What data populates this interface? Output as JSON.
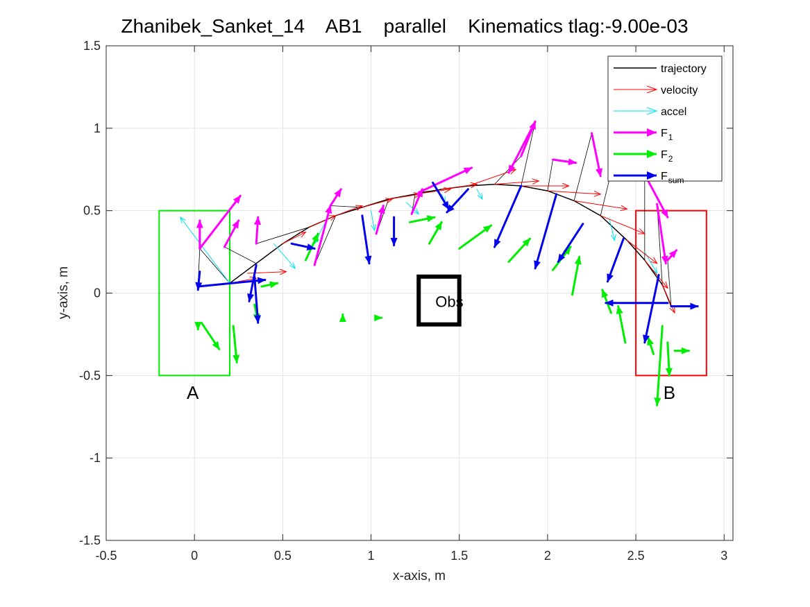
{
  "chart_data": {
    "type": "line",
    "title": "Zhanibek_Sanket_14    AB1    parallel    Kinematics tlag:-9.00e-03",
    "xlabel": "x-axis, m",
    "ylabel": "y-axis, m",
    "xlim": [
      -0.5,
      3.05
    ],
    "ylim": [
      -1.5,
      1.5
    ],
    "xticks": [
      -0.5,
      0,
      0.5,
      1,
      1.5,
      2,
      2.5,
      3
    ],
    "xtick_labels": [
      "-0.5",
      "0",
      "0.5",
      "1",
      "1.5",
      "2",
      "2.5",
      "3"
    ],
    "yticks": [
      -1.5,
      -1,
      -0.5,
      0,
      0.5,
      1,
      1.5
    ],
    "ytick_labels": [
      "-1.5",
      "-1",
      "-0.5",
      "0",
      "0.5",
      "1",
      "1.5"
    ],
    "grid": true,
    "legend_position": "top-right",
    "legend": [
      {
        "label": "trajectory",
        "sub": "",
        "color": "#000000",
        "style": "line"
      },
      {
        "label": "velocity",
        "sub": "",
        "color": "#ff0000",
        "style": "thin-arrow"
      },
      {
        "label": "accel",
        "sub": "",
        "color": "#00e5ee",
        "style": "thin-arrow"
      },
      {
        "label": "F",
        "sub": "1",
        "color": "#ff00ff",
        "style": "thick-arrow"
      },
      {
        "label": "F",
        "sub": "2",
        "color": "#00ee00",
        "style": "thick-arrow"
      },
      {
        "label": "F",
        "sub": "sum",
        "color": "#0000ee",
        "style": "thick-arrow"
      }
    ],
    "regions": [
      {
        "label": "A",
        "color": "#00ee00",
        "x": [
          -0.2,
          0.2
        ],
        "y": [
          -0.5,
          0.5
        ],
        "label_at": [
          -0.01,
          -0.6
        ]
      },
      {
        "label": "B",
        "color": "#ff0000",
        "x": [
          2.5,
          2.9
        ],
        "y": [
          -0.5,
          0.5
        ],
        "label_at": [
          2.69,
          -0.6
        ]
      }
    ],
    "obstacle": {
      "label": "Obs",
      "x": [
        1.27,
        1.5
      ],
      "y": [
        -0.19,
        0.1
      ]
    },
    "trajectory": {
      "x": [
        0.02,
        0.2,
        0.35,
        0.5,
        0.65,
        0.8,
        0.95,
        1.1,
        1.25,
        1.4,
        1.55,
        1.7,
        1.85,
        2.0,
        2.15,
        2.3,
        2.45,
        2.55,
        2.65,
        2.7
      ],
      "y": [
        0.04,
        0.06,
        0.18,
        0.3,
        0.4,
        0.47,
        0.52,
        0.57,
        0.6,
        0.63,
        0.65,
        0.66,
        0.65,
        0.62,
        0.56,
        0.47,
        0.32,
        0.2,
        0.05,
        -0.08
      ]
    },
    "velocity": [
      [
        0.2,
        0.06,
        0.35,
        0.09
      ],
      [
        0.3,
        0.12,
        0.52,
        0.13
      ],
      [
        0.5,
        0.3,
        0.63,
        0.37
      ],
      [
        0.65,
        0.4,
        0.8,
        0.47
      ],
      [
        0.8,
        0.47,
        0.95,
        0.53
      ],
      [
        0.95,
        0.52,
        1.12,
        0.57
      ],
      [
        1.1,
        0.57,
        1.28,
        0.6
      ],
      [
        1.25,
        0.6,
        1.45,
        0.63
      ],
      [
        1.4,
        0.63,
        1.6,
        0.66
      ],
      [
        1.55,
        0.65,
        1.82,
        0.75
      ],
      [
        1.7,
        0.66,
        1.95,
        0.68
      ],
      [
        1.85,
        0.65,
        2.12,
        0.65
      ],
      [
        2.0,
        0.62,
        2.3,
        0.6
      ],
      [
        2.15,
        0.56,
        2.45,
        0.51
      ],
      [
        2.3,
        0.47,
        2.55,
        0.36
      ],
      [
        2.45,
        0.32,
        2.62,
        0.18
      ],
      [
        2.55,
        0.2,
        2.68,
        0.03
      ],
      [
        2.65,
        0.05,
        2.72,
        -0.12
      ]
    ],
    "accel": [
      [
        0.2,
        0.06,
        -0.08,
        0.46
      ],
      [
        0.45,
        0.3,
        0.57,
        0.15
      ],
      [
        0.75,
        0.45,
        0.68,
        0.3
      ],
      [
        1.0,
        0.5,
        1.02,
        0.38
      ],
      [
        1.2,
        0.55,
        1.27,
        0.48
      ],
      [
        1.4,
        0.6,
        1.42,
        0.55
      ],
      [
        1.6,
        0.63,
        1.63,
        0.57
      ],
      [
        2.35,
        0.45,
        2.38,
        0.32
      ],
      [
        2.55,
        0.25,
        2.62,
        0.12
      ]
    ],
    "F1": [
      [
        0.03,
        0.27,
        0.03,
        0.44
      ],
      [
        0.03,
        0.27,
        0.26,
        0.59
      ],
      [
        0.17,
        0.28,
        0.25,
        0.44
      ],
      [
        0.35,
        0.3,
        0.36,
        0.46
      ],
      [
        0.68,
        0.17,
        0.77,
        0.53
      ],
      [
        0.77,
        0.53,
        0.83,
        0.63
      ],
      [
        1.03,
        0.36,
        1.07,
        0.53
      ],
      [
        1.23,
        0.48,
        1.29,
        0.63
      ],
      [
        1.27,
        0.61,
        1.57,
        0.76
      ],
      [
        1.85,
        0.83,
        1.93,
        1.04
      ],
      [
        1.93,
        1.04,
        1.78,
        0.73
      ],
      [
        2.03,
        0.81,
        2.16,
        0.79
      ],
      [
        2.25,
        0.97,
        2.3,
        0.71
      ],
      [
        2.43,
        1.04,
        2.37,
        0.86
      ],
      [
        2.55,
        0.72,
        2.68,
        0.46
      ],
      [
        2.62,
        0.54,
        2.67,
        0.18
      ],
      [
        2.68,
        0.2,
        2.73,
        0.26
      ]
    ],
    "F2": [
      [
        0.02,
        -0.18,
        0.02,
        -0.22
      ],
      [
        0.04,
        -0.18,
        0.14,
        -0.34
      ],
      [
        0.22,
        -0.2,
        0.24,
        -0.42
      ],
      [
        0.34,
        -0.07,
        0.36,
        -0.17
      ],
      [
        0.38,
        0.04,
        0.47,
        0.06
      ],
      [
        0.63,
        0.2,
        0.7,
        0.36
      ],
      [
        0.84,
        -0.14,
        0.84,
        -0.13
      ],
      [
        1.05,
        -0.15,
        1.06,
        -0.15
      ],
      [
        1.22,
        0.43,
        1.36,
        0.46
      ],
      [
        1.33,
        0.3,
        1.4,
        0.43
      ],
      [
        1.5,
        0.27,
        1.68,
        0.41
      ],
      [
        1.78,
        0.19,
        1.9,
        0.33
      ],
      [
        2.03,
        0.14,
        2.13,
        0.28
      ],
      [
        2.14,
        -0.01,
        2.18,
        0.22
      ],
      [
        2.36,
        -0.12,
        2.31,
        0.02
      ],
      [
        2.44,
        -0.3,
        2.4,
        -0.08
      ],
      [
        2.6,
        -0.37,
        2.57,
        -0.27
      ],
      [
        2.65,
        -0.2,
        2.62,
        -0.68
      ],
      [
        2.68,
        -0.3,
        2.69,
        -0.5
      ],
      [
        2.72,
        -0.35,
        2.8,
        -0.35
      ]
    ],
    "Fsum": [
      [
        0.03,
        0.13,
        0.02,
        0.02
      ],
      [
        0.02,
        0.04,
        0.4,
        0.08
      ],
      [
        0.34,
        0.1,
        0.36,
        -0.18
      ],
      [
        0.35,
        0.17,
        0.31,
        -0.05
      ],
      [
        0.55,
        0.3,
        0.68,
        0.27
      ],
      [
        0.95,
        0.47,
        0.99,
        0.18
      ],
      [
        1.13,
        0.46,
        1.13,
        0.29
      ],
      [
        1.35,
        0.67,
        1.44,
        0.51
      ],
      [
        1.55,
        0.63,
        1.43,
        0.49
      ],
      [
        1.85,
        0.65,
        1.7,
        0.28
      ],
      [
        2.05,
        0.6,
        1.93,
        0.15
      ],
      [
        2.2,
        0.42,
        2.06,
        0.19
      ],
      [
        2.43,
        0.33,
        2.34,
        0.07
      ],
      [
        2.63,
        0.11,
        2.55,
        -0.3
      ],
      [
        2.7,
        -0.08,
        2.85,
        -0.08
      ],
      [
        2.68,
        -0.06,
        2.33,
        -0.06
      ]
    ]
  }
}
